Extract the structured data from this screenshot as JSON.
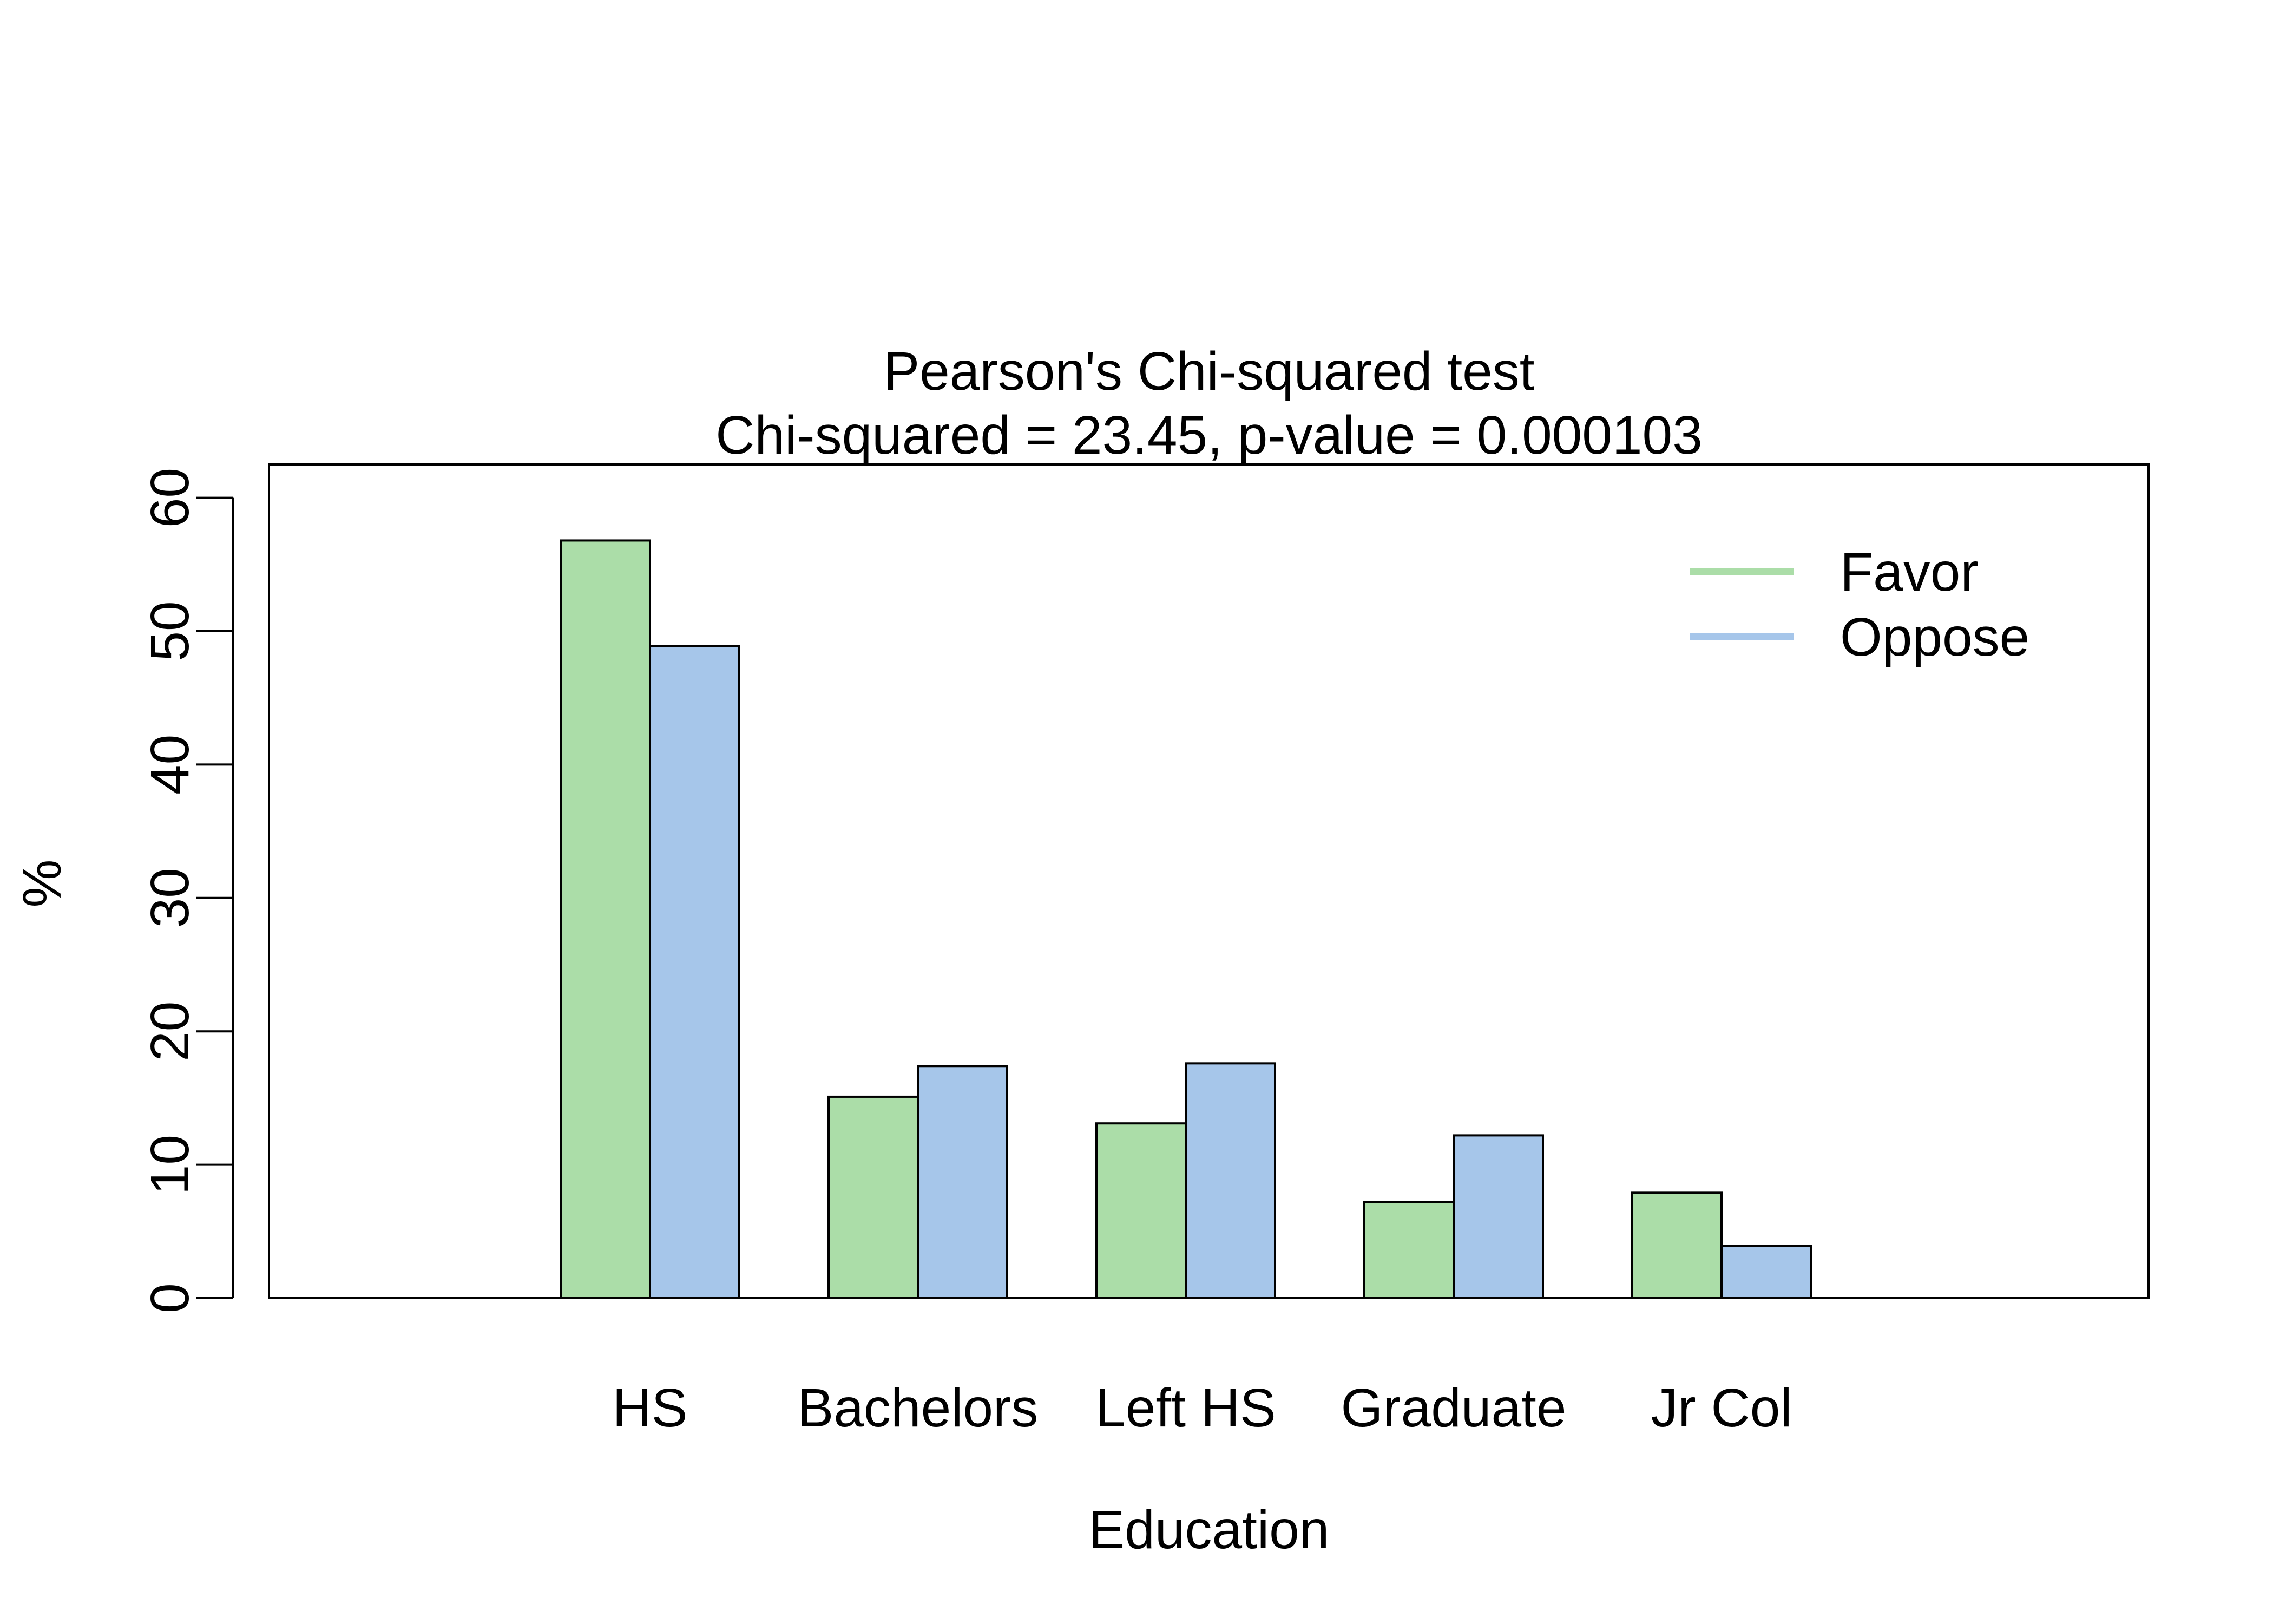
{
  "chart_data": {
    "type": "bar",
    "title": "Pearson's Chi-squared test",
    "subtitle": "Chi-squared = 23.45, p-value = 0.000103",
    "xlabel": "Education",
    "ylabel": "%",
    "categories": [
      "HS",
      "Bachelors",
      "Left HS",
      "Graduate",
      "Jr Col"
    ],
    "series": [
      {
        "name": "Favor",
        "color": "#abdda8",
        "values": [
          56.8,
          15.1,
          13.1,
          7.2,
          7.9
        ]
      },
      {
        "name": "Oppose",
        "color": "#a6c6ea",
        "values": [
          48.9,
          17.4,
          17.6,
          12.2,
          3.9
        ]
      }
    ],
    "ylim": [
      0,
      62.5
    ],
    "yticks": [
      0,
      10,
      20,
      30,
      40,
      50,
      60
    ],
    "legend_position": "top-right",
    "grid": false
  }
}
